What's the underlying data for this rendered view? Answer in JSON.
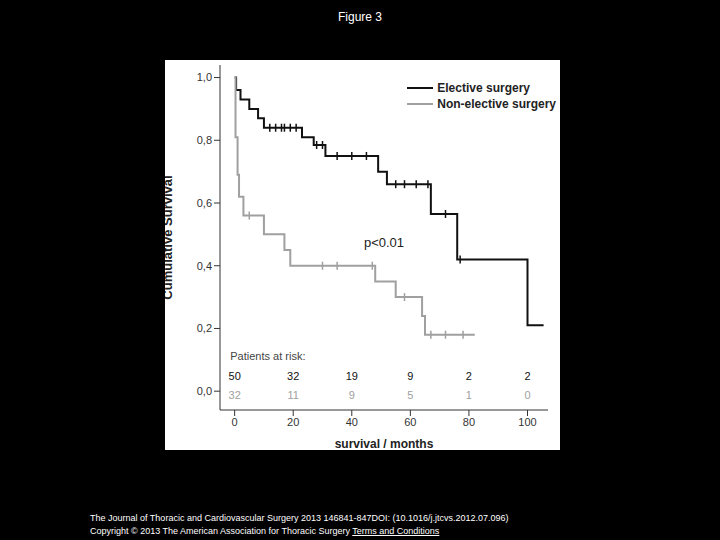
{
  "title": "Figure 3",
  "footer": {
    "citation": "The Journal of Thoracic and Cardiovascular Surgery 2013 146841-847DOI: (10.1016/j.jtcvs.2012.07.096)",
    "copyright": "Copyright © 2013 The American Association for Thoracic Surgery",
    "link": "Terms and Conditions"
  },
  "chart_data": {
    "type": "line",
    "line_style": "step",
    "x_label": "survival / months",
    "y_label": "Cumulative Survival",
    "xlim": [
      -5,
      107
    ],
    "xticks": [
      0,
      20,
      40,
      60,
      80,
      100
    ],
    "ylim": [
      -0.06,
      1.04
    ],
    "yticks": [
      {
        "value": 0,
        "label": "0,0"
      },
      {
        "value": 0.2,
        "label": "0,2"
      },
      {
        "value": 0.4,
        "label": "0,4"
      },
      {
        "value": 0.6,
        "label": "0,6"
      },
      {
        "value": 0.8,
        "label": "0,8"
      },
      {
        "value": 1,
        "label": "1,0"
      }
    ],
    "legend": "top right",
    "annotation": "p<0.01",
    "at_risk_label": "Patients at risk:",
    "at_risk_x": [
      0,
      20,
      40,
      60,
      80,
      100
    ],
    "series": [
      {
        "name": "Elective surgery",
        "color": "#111111",
        "x": [
          0,
          0.5,
          2,
          5,
          8,
          10,
          23,
          27,
          31,
          49,
          52,
          67,
          76,
          100,
          105.5
        ],
        "values": [
          1,
          0.96,
          0.93,
          0.9,
          0.87,
          0.84,
          0.81,
          0.785,
          0.75,
          0.7,
          0.66,
          0.565,
          0.42,
          0.21,
          0.21
        ],
        "censored": [
          [
            12,
            0.84
          ],
          [
            14,
            0.84
          ],
          [
            16,
            0.84
          ],
          [
            17,
            0.84
          ],
          [
            19,
            0.84
          ],
          [
            21,
            0.84
          ],
          [
            28,
            0.785
          ],
          [
            30,
            0.785
          ],
          [
            35,
            0.75
          ],
          [
            40,
            0.75
          ],
          [
            45,
            0.75
          ],
          [
            55,
            0.66
          ],
          [
            58,
            0.66
          ],
          [
            62,
            0.66
          ],
          [
            66,
            0.66
          ],
          [
            72,
            0.565
          ],
          [
            77,
            0.42
          ]
        ],
        "at_risk": [
          50,
          32,
          19,
          9,
          2,
          2
        ]
      },
      {
        "name": "Non-elective surgery",
        "color": "#a0a0a0",
        "x": [
          0,
          0.3,
          1,
          1.5,
          3,
          10,
          17,
          19,
          48,
          55,
          64,
          65,
          82
        ],
        "values": [
          1,
          0.81,
          0.69,
          0.62,
          0.56,
          0.5,
          0.45,
          0.4,
          0.35,
          0.3,
          0.24,
          0.18,
          0.18
        ],
        "censored": [
          [
            5,
            0.56
          ],
          [
            30,
            0.4
          ],
          [
            35,
            0.4
          ],
          [
            47,
            0.4
          ],
          [
            58,
            0.3
          ],
          [
            67,
            0.18
          ],
          [
            72,
            0.18
          ],
          [
            78,
            0.18
          ]
        ],
        "at_risk": [
          32,
          11,
          9,
          5,
          1,
          0
        ]
      }
    ]
  }
}
